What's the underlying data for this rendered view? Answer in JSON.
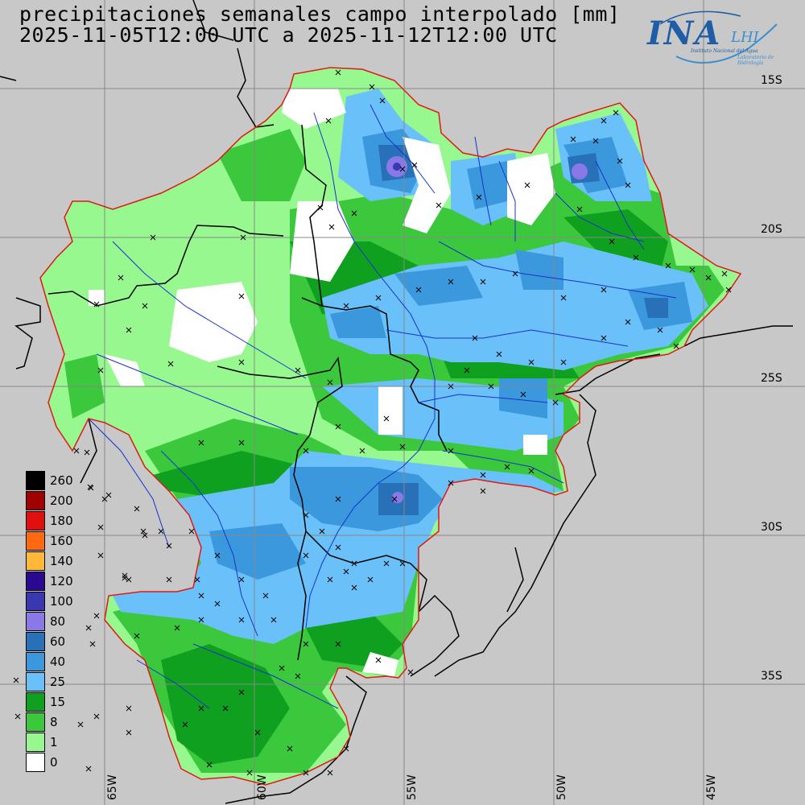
{
  "title": {
    "line1": "precipitaciones semanales campo interpolado [mm]",
    "line2": "2025-11-05T12:00 UTC a 2025-11-12T12:00 UTC"
  },
  "logo": {
    "main": "INA",
    "lhi": "LHI",
    "sub1": "Instituto Nacional del Agua",
    "sub2": "Laboratorio de Hidrología"
  },
  "latitude_labels": [
    "15S",
    "20S",
    "25S",
    "30S",
    "35S"
  ],
  "longitude_labels": [
    "65W",
    "60W",
    "55W",
    "50W",
    "45W"
  ],
  "legend": [
    {
      "label": "260",
      "color": "#000000"
    },
    {
      "label": "200",
      "color": "#a00000"
    },
    {
      "label": "180",
      "color": "#e01010"
    },
    {
      "label": "160",
      "color": "#ff6a10"
    },
    {
      "label": "140",
      "color": "#ffb838"
    },
    {
      "label": "120",
      "color": "#2a0890"
    },
    {
      "label": "100",
      "color": "#3a38b0"
    },
    {
      "label": "80",
      "color": "#8a78e8"
    },
    {
      "label": "60",
      "color": "#2870b8"
    },
    {
      "label": "40",
      "color": "#3c98dc"
    },
    {
      "label": "25",
      "color": "#6ac0f8"
    },
    {
      "label": "15",
      "color": "#10a020"
    },
    {
      "label": "8",
      "color": "#3cc83c"
    },
    {
      "label": "1",
      "color": "#98f890"
    },
    {
      "label": "0",
      "color": "#ffffff"
    }
  ],
  "colors": {
    "background": "#c8c8c8",
    "basin_outline": "#e01818",
    "rivers": "#1830d0",
    "borders": "#000000",
    "grid": "#888888"
  }
}
